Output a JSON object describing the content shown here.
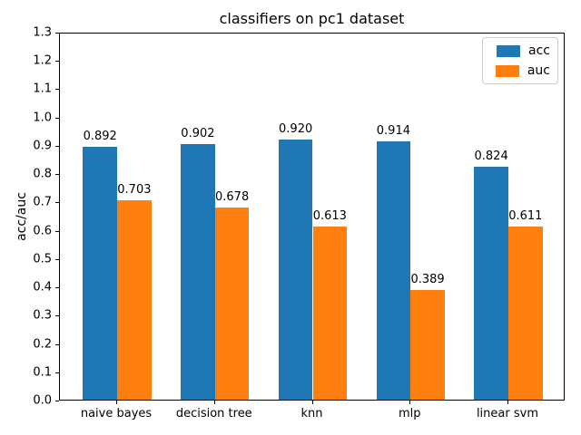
{
  "chart_data": {
    "type": "bar",
    "title": "classifiers on pc1 dataset",
    "xlabel": "",
    "ylabel": "acc/auc",
    "categories": [
      "naive bayes",
      "decision tree",
      "knn",
      "mlp",
      "linear svm"
    ],
    "series": [
      {
        "name": "acc",
        "color": "#1f77b4",
        "values": [
          0.892,
          0.902,
          0.92,
          0.914,
          0.824
        ],
        "labels": [
          "0.892",
          "0.902",
          "0.920",
          "0.914",
          "0.824"
        ]
      },
      {
        "name": "auc",
        "color": "#ff7f0e",
        "values": [
          0.703,
          0.678,
          0.613,
          0.389,
          0.611
        ],
        "labels": [
          "0.703",
          "0.678",
          "0.613",
          "0.389",
          "0.611"
        ]
      }
    ],
    "ylim": [
      0.0,
      1.3
    ],
    "ytick_step": 0.1,
    "xlim": [
      -0.585,
      4.585
    ],
    "bar_width": 0.35,
    "grid": false,
    "legend": {
      "position": "upper right",
      "entries": [
        "acc",
        "auc"
      ]
    }
  }
}
